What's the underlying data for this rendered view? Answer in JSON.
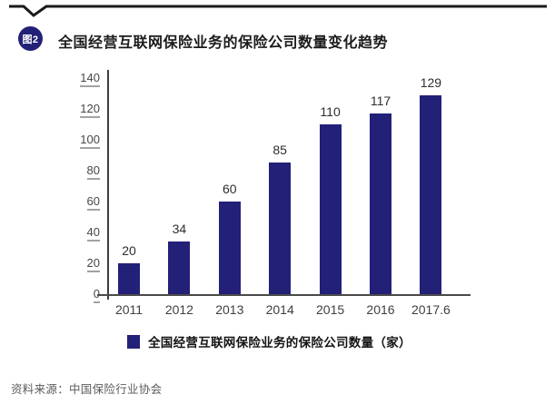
{
  "figure": {
    "badge_label": "图2",
    "title": "全国经营互联网保险业务的保险公司数量变化趋势",
    "source": "资料来源：中国保险行业协会"
  },
  "legend": {
    "label": "全国经营互联网保险业务的保险公司数量（家）"
  },
  "colors": {
    "bar": "#232078",
    "badge": "#232078",
    "legend_swatch": "#232078"
  },
  "chart_data": {
    "type": "bar",
    "categories": [
      "2011",
      "2012",
      "2013",
      "2014",
      "2015",
      "2016",
      "2017.6"
    ],
    "values": [
      20,
      34,
      60,
      85,
      110,
      117,
      129
    ],
    "title": "全国经营互联网保险业务的保险公司数量变化趋势",
    "xlabel": "",
    "ylabel": "",
    "ylim": [
      0,
      140
    ],
    "yticks": [
      0,
      20,
      40,
      60,
      80,
      100,
      120,
      140
    ],
    "grid": false,
    "legend_entries": [
      "全国经营互联网保险业务的保险公司数量（家）"
    ],
    "legend_position": "bottom"
  }
}
